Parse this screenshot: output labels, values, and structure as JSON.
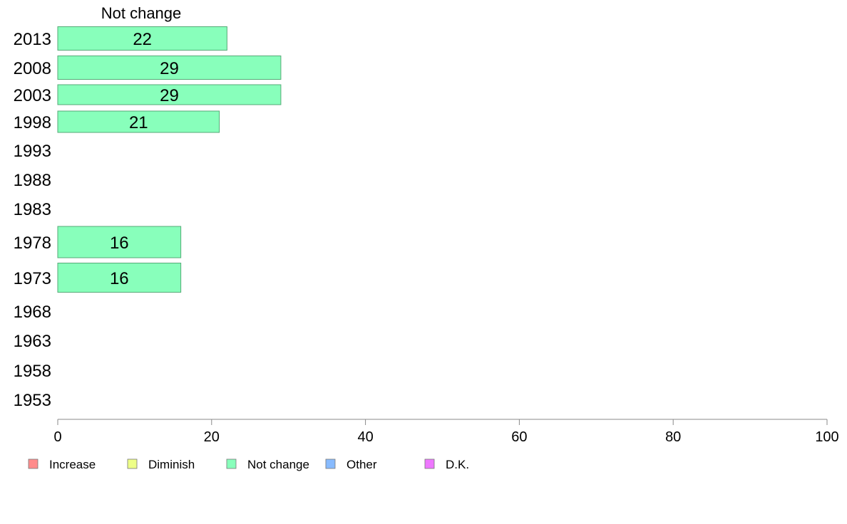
{
  "chart_data": {
    "type": "bar",
    "orientation": "horizontal",
    "series_title": "Not change",
    "categories": [
      "2013",
      "2008",
      "2003",
      "1998",
      "1993",
      "1988",
      "1983",
      "1978",
      "1973",
      "1968",
      "1963",
      "1958",
      "1953"
    ],
    "series": [
      {
        "name": "Not change",
        "values": [
          22,
          29,
          29,
          21,
          null,
          null,
          null,
          16,
          16,
          null,
          null,
          null,
          null
        ]
      }
    ],
    "xlim": [
      0,
      100
    ],
    "xticks": [
      0,
      20,
      40,
      60,
      80,
      100
    ],
    "grid": false,
    "legend": {
      "placement": "bottom-left",
      "items": [
        {
          "label": "Increase",
          "color": "#ff8c8c"
        },
        {
          "label": "Diminish",
          "color": "#eeff88"
        },
        {
          "label": "Not change",
          "color": "#88ffbb"
        },
        {
          "label": "Other",
          "color": "#88bbff"
        },
        {
          "label": "D.K.",
          "color": "#ee77ff"
        }
      ]
    },
    "colors": {
      "bar_fill": "#88ffbb",
      "bar_stroke": "#55aa77",
      "axis": "#888888"
    }
  }
}
